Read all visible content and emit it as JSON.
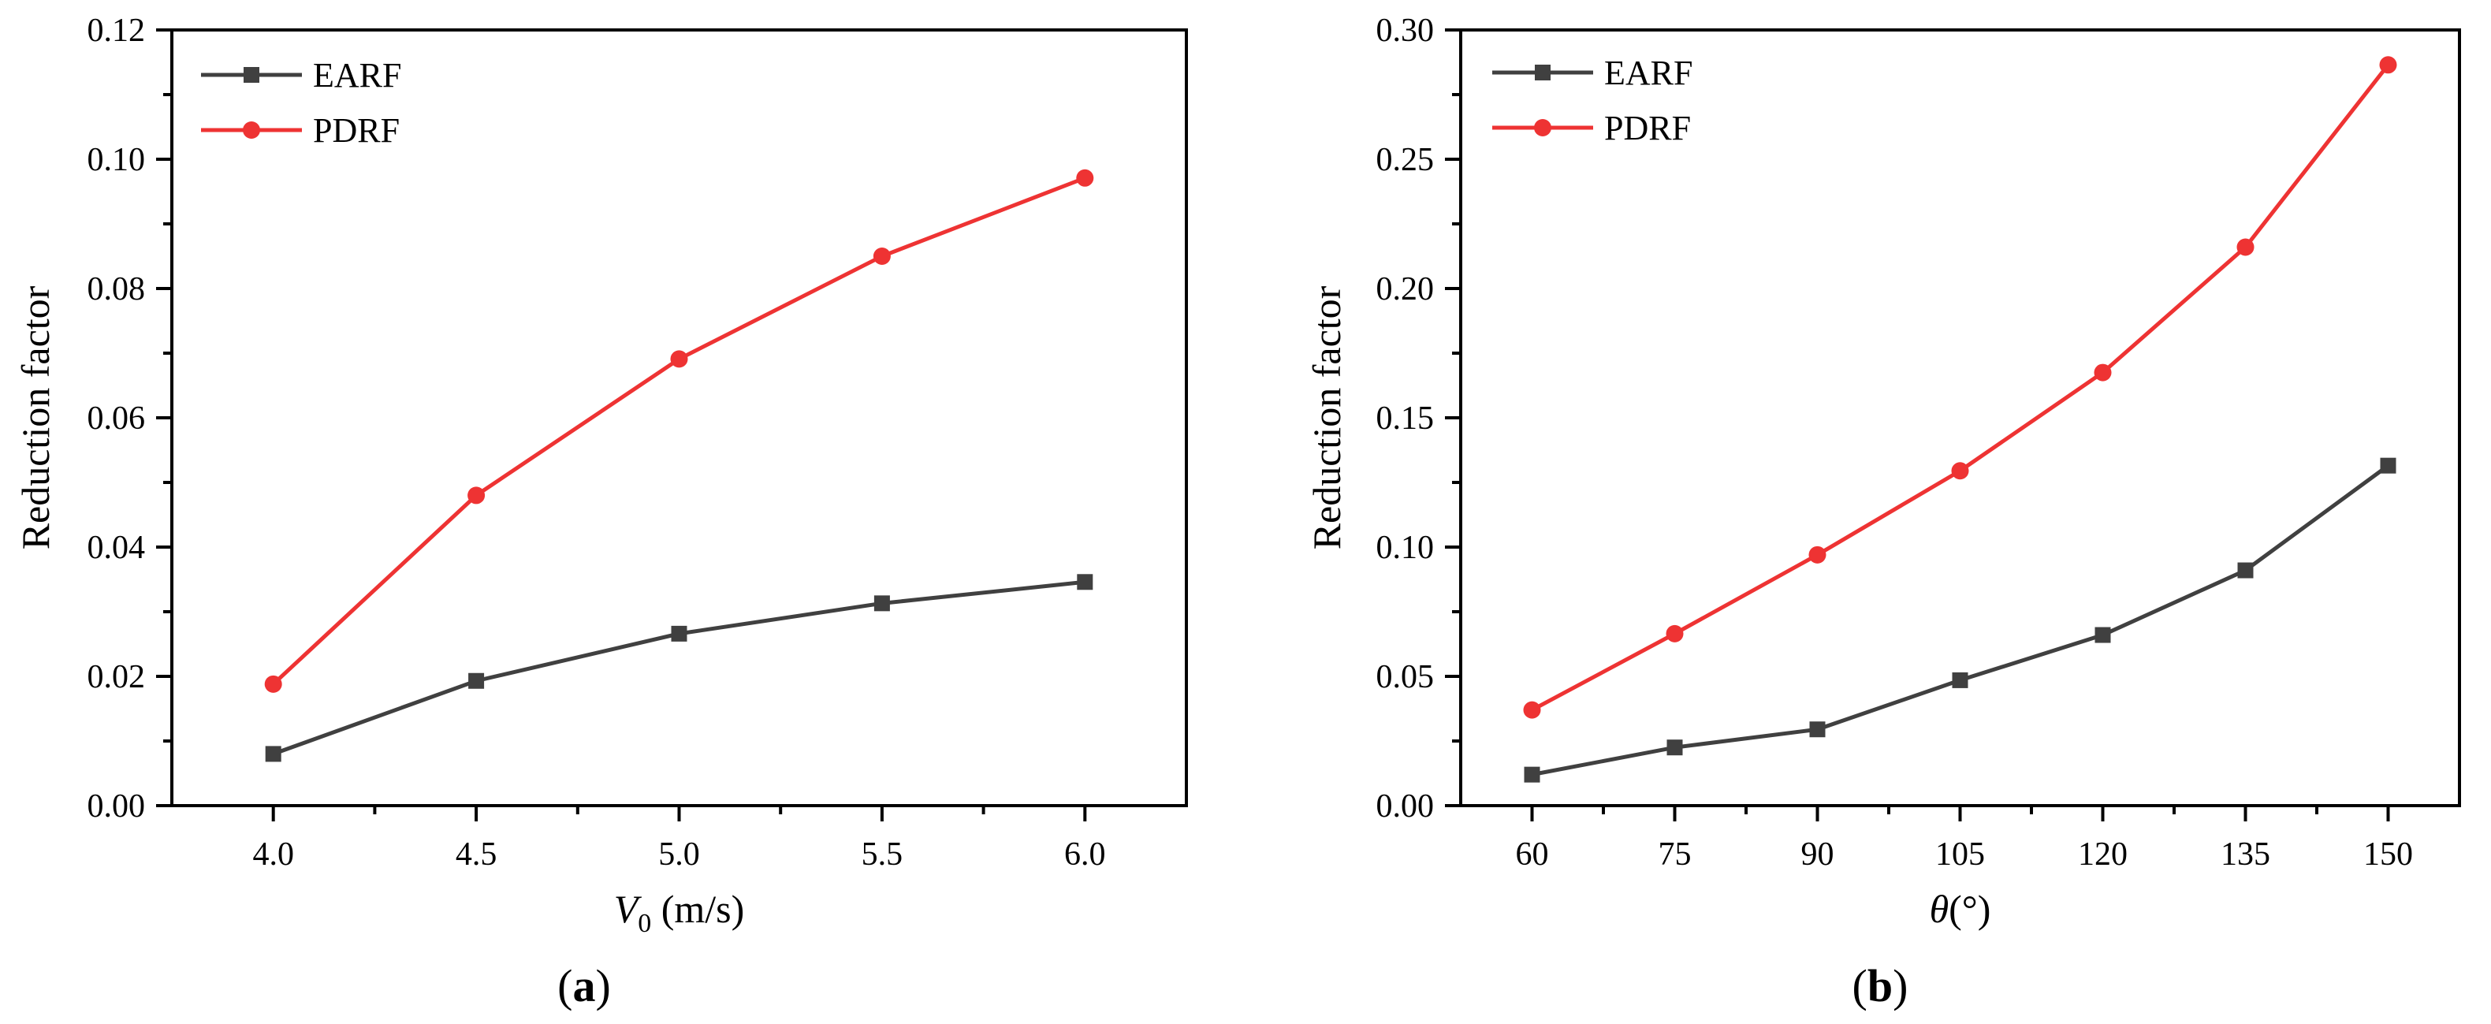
{
  "chart_data": [
    {
      "type": "line",
      "panel_label": "(a)",
      "xlabel": "V0 (m/s)",
      "xlabel_symbol": "V",
      "xlabel_subscript": "0",
      "xlabel_unit": " (m/s)",
      "ylabel": "Reduction factor",
      "xlim": [
        3.75,
        6.25
      ],
      "ylim": [
        0.0,
        0.12
      ],
      "x_ticks": [
        "4.0",
        "4.5",
        "5.0",
        "5.5",
        "6.0"
      ],
      "y_ticks": [
        "0.00",
        "0.02",
        "0.04",
        "0.06",
        "0.08",
        "0.10",
        "0.12"
      ],
      "x": [
        4.0,
        4.5,
        5.0,
        5.5,
        6.0
      ],
      "series": [
        {
          "name": "EARF",
          "color": "#404040",
          "marker": "square",
          "values": [
            0.008,
            0.0193,
            0.0266,
            0.0313,
            0.0346
          ]
        },
        {
          "name": "PDRF",
          "color": "#ee3333",
          "marker": "circle",
          "values": [
            0.0188,
            0.048,
            0.0691,
            0.085,
            0.0971
          ]
        }
      ],
      "legend_position": "top-left",
      "grid": false
    },
    {
      "type": "line",
      "panel_label": "(b)",
      "xlabel": "θ(°)",
      "xlabel_symbol": "θ",
      "xlabel_unit": "(°)",
      "ylabel": "Reduction factor",
      "xlim": [
        52.5,
        157.5
      ],
      "ylim": [
        0.0,
        0.3
      ],
      "x_ticks": [
        "60",
        "75",
        "90",
        "105",
        "120",
        "135",
        "150"
      ],
      "y_ticks": [
        "0.00",
        "0.05",
        "0.10",
        "0.15",
        "0.20",
        "0.25",
        "0.30"
      ],
      "x": [
        60,
        75,
        90,
        105,
        120,
        135,
        150
      ],
      "series": [
        {
          "name": "EARF",
          "color": "#404040",
          "marker": "square",
          "values": [
            0.012,
            0.0225,
            0.0295,
            0.0485,
            0.066,
            0.091,
            0.1315
          ]
        },
        {
          "name": "PDRF",
          "color": "#ee3333",
          "marker": "circle",
          "values": [
            0.037,
            0.0665,
            0.097,
            0.1295,
            0.1675,
            0.216,
            0.2865
          ]
        }
      ],
      "legend_position": "top-left",
      "grid": false
    }
  ]
}
